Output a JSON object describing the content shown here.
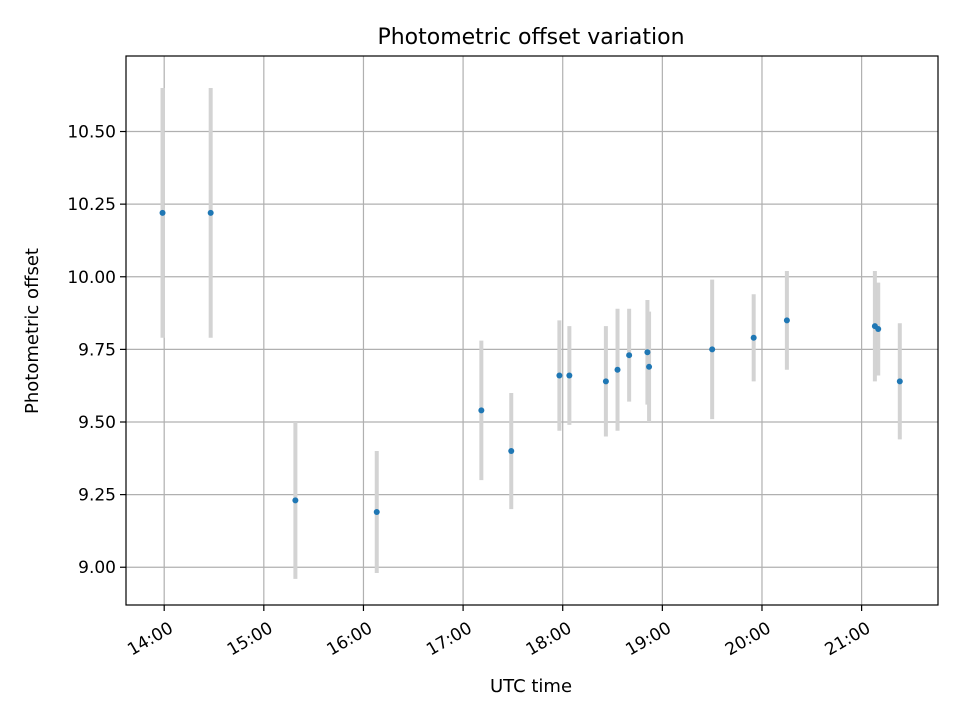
{
  "chart_data": {
    "type": "scatter",
    "title": "Photometric offset variation",
    "xlabel": "UTC time",
    "ylabel": "Photometric offset",
    "x_unit": "time of day (UTC)",
    "xlim": [
      "13:37",
      "21:46"
    ],
    "ylim": [
      8.87,
      10.76
    ],
    "xticks": [
      "14:00",
      "15:00",
      "16:00",
      "17:00",
      "18:00",
      "19:00",
      "20:00",
      "21:00"
    ],
    "yticks": [
      "9.00",
      "9.25",
      "9.50",
      "9.75",
      "10.00",
      "10.25",
      "10.50"
    ],
    "grid": true,
    "marker_color": "#1f77b4",
    "errorbar_color": "#d3d3d3",
    "points": [
      {
        "x": "13:59",
        "y": 10.22,
        "err": 0.43
      },
      {
        "x": "14:28",
        "y": 10.22,
        "err": 0.43
      },
      {
        "x": "15:19",
        "y": 9.23,
        "err": 0.27
      },
      {
        "x": "16:08",
        "y": 9.19,
        "err": 0.21
      },
      {
        "x": "17:11",
        "y": 9.54,
        "err": 0.24
      },
      {
        "x": "17:29",
        "y": 9.4,
        "err": 0.2
      },
      {
        "x": "17:58",
        "y": 9.66,
        "err": 0.19
      },
      {
        "x": "18:04",
        "y": 9.66,
        "err": 0.17
      },
      {
        "x": "18:26",
        "y": 9.64,
        "err": 0.19
      },
      {
        "x": "18:33",
        "y": 9.68,
        "err": 0.21
      },
      {
        "x": "18:40",
        "y": 9.73,
        "err": 0.16
      },
      {
        "x": "18:51",
        "y": 9.74,
        "err": 0.18
      },
      {
        "x": "18:52",
        "y": 9.69,
        "err": 0.19
      },
      {
        "x": "19:30",
        "y": 9.75,
        "err": 0.24
      },
      {
        "x": "19:55",
        "y": 9.79,
        "err": 0.15
      },
      {
        "x": "20:15",
        "y": 9.85,
        "err": 0.17
      },
      {
        "x": "21:08",
        "y": 9.83,
        "err": 0.19
      },
      {
        "x": "21:10",
        "y": 9.82,
        "err": 0.16
      },
      {
        "x": "21:23",
        "y": 9.64,
        "err": 0.2
      }
    ]
  }
}
